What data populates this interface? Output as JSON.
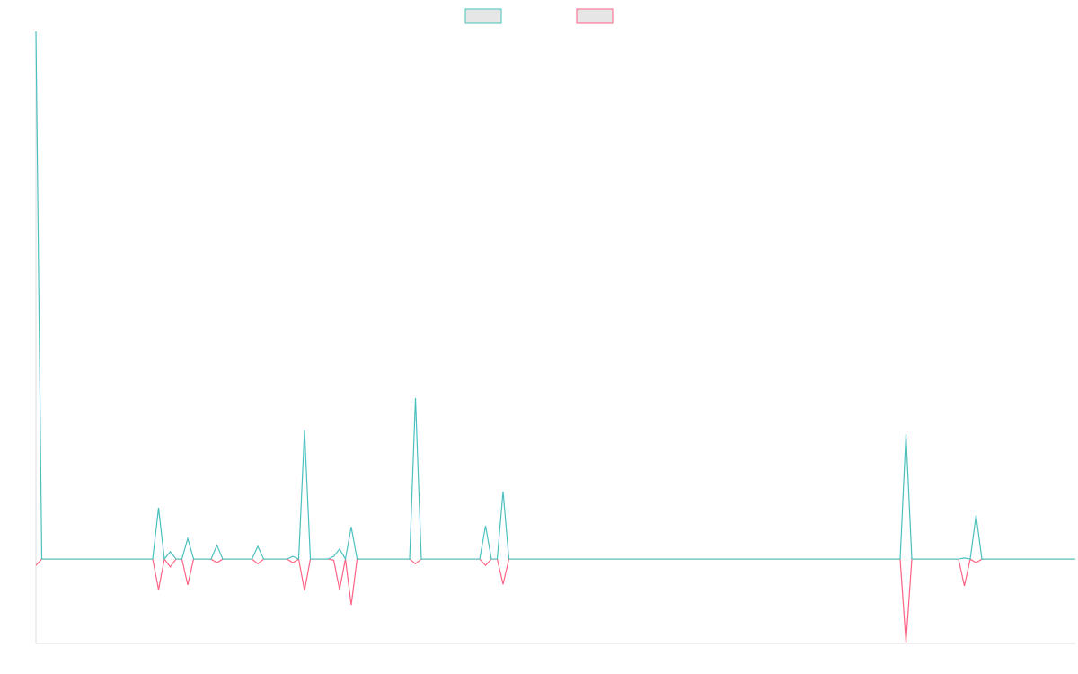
{
  "chart_data": {
    "type": "line",
    "ylim": [
      -16,
      100
    ],
    "legend": "top",
    "series": [
      {
        "color": "#4bc0c0",
        "values": [
          100,
          0,
          0,
          0,
          0,
          0,
          0,
          0,
          0,
          0,
          0,
          0,
          0,
          0,
          0,
          0,
          0,
          0,
          0,
          0,
          0,
          9.7,
          0,
          1.4,
          0,
          0,
          3.9,
          0,
          0,
          0,
          0,
          2.6,
          0,
          0,
          0,
          0,
          0,
          0,
          2.4,
          0,
          0,
          0,
          0,
          0,
          0.5,
          0,
          24.4,
          0,
          0,
          0,
          0,
          0.5,
          1.9,
          0,
          6.1,
          0,
          0,
          0,
          0,
          0,
          0,
          0,
          0,
          0,
          0,
          30.5,
          0,
          0,
          0,
          0,
          0,
          0,
          0,
          0,
          0,
          0,
          0,
          6.3,
          0,
          0,
          12.8,
          0,
          0,
          0,
          0,
          0,
          0,
          0,
          0,
          0,
          0,
          0,
          0,
          0,
          0,
          0,
          0,
          0,
          0,
          0,
          0,
          0,
          0,
          0,
          0,
          0,
          0,
          0,
          0,
          0,
          0,
          0,
          0,
          0,
          0,
          0,
          0,
          0,
          0,
          0,
          0,
          0,
          0,
          0,
          0,
          0,
          0,
          0,
          0,
          0,
          0,
          0,
          0,
          0,
          0,
          0,
          0,
          0,
          0,
          0,
          0,
          0,
          0,
          0,
          0,
          0,
          0,
          0,
          0,
          23.7,
          0,
          0,
          0,
          0,
          0,
          0,
          0,
          0,
          0,
          0.2,
          0,
          8.3,
          0,
          0,
          0,
          0,
          0,
          0,
          0,
          0,
          0,
          0,
          0,
          0,
          0,
          0,
          0,
          0,
          0
        ]
      },
      {
        "color": "#ff6384",
        "values": [
          -1.2,
          0,
          0,
          0,
          0,
          0,
          0,
          0,
          0,
          0,
          0,
          0,
          0,
          0,
          0,
          0,
          0,
          0,
          0,
          0,
          0,
          -5.8,
          0,
          -1.5,
          0,
          0,
          -4.9,
          0,
          0,
          0,
          0,
          -0.7,
          0,
          0,
          0,
          0,
          0,
          0,
          -0.9,
          0,
          0,
          0,
          0,
          0,
          -0.7,
          0,
          -6,
          0,
          0,
          0,
          0,
          -0.2,
          -5.8,
          0,
          -8.7,
          0,
          0,
          0,
          0,
          0,
          0,
          0,
          0,
          0,
          0,
          -0.9,
          0,
          0,
          0,
          0,
          0,
          0,
          0,
          0,
          0,
          0,
          0,
          -1.2,
          0,
          0,
          -4.8,
          0,
          0,
          0,
          0,
          0,
          0,
          0,
          0,
          0,
          0,
          0,
          0,
          0,
          0,
          0,
          0,
          0,
          0,
          0,
          0,
          0,
          0,
          0,
          0,
          0,
          0,
          0,
          0,
          0,
          0,
          0,
          0,
          0,
          0,
          0,
          0,
          0,
          0,
          0,
          0,
          0,
          0,
          0,
          0,
          0,
          0,
          0,
          0,
          0,
          0,
          0,
          0,
          0,
          0,
          0,
          0,
          0,
          0,
          0,
          0,
          0,
          0,
          0,
          0,
          0,
          0,
          0,
          0,
          -15.8,
          0,
          0,
          0,
          0,
          0,
          0,
          0,
          0,
          0,
          -5.1,
          0,
          -0.7,
          0,
          0,
          0,
          0,
          0,
          0,
          0,
          0,
          0,
          0,
          0,
          0,
          0,
          0,
          0,
          0,
          0
        ]
      }
    ]
  }
}
